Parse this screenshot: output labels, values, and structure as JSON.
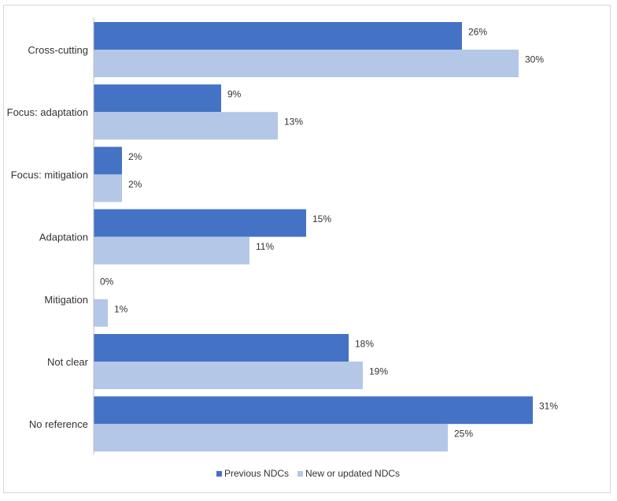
{
  "chart_data": {
    "type": "bar",
    "orientation": "horizontal",
    "categories": [
      "Cross-cutting",
      "Focus: adaptation",
      "Focus: mitigation",
      "Adaptation",
      "Mitigation",
      "Not clear",
      "No reference"
    ],
    "series": [
      {
        "name": "Previous NDCs",
        "color": "#4472c4",
        "values": [
          26,
          9,
          2,
          15,
          0,
          18,
          31
        ],
        "labels": [
          "26%",
          "9%",
          "2%",
          "15%",
          "0%",
          "18%",
          "31%"
        ]
      },
      {
        "name": "New or updated NDCs",
        "color": "#b4c7e7",
        "values": [
          30,
          13,
          2,
          11,
          1,
          19,
          25
        ],
        "labels": [
          "30%",
          "13%",
          "2%",
          "11%",
          "1%",
          "19%",
          "25%"
        ]
      }
    ],
    "unit": "%",
    "xlim": [
      0,
      35
    ],
    "grid": false,
    "legend_position": "bottom"
  }
}
